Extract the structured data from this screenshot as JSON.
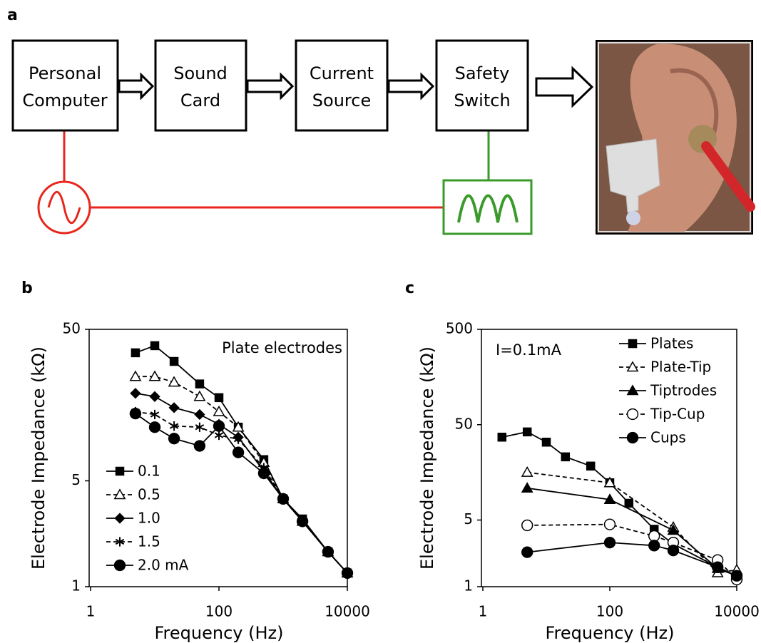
{
  "panel_labels": [
    "a",
    "b",
    "c"
  ],
  "diagram": {
    "boxes": [
      [
        "Personal",
        "Computer"
      ],
      [
        "Sound",
        "Card"
      ],
      [
        "Current",
        "Source"
      ],
      [
        "Safety",
        "Switch"
      ]
    ]
  },
  "chart_data": [
    {
      "type": "line",
      "log_x": true,
      "log_y": true,
      "xlabel": "Frequency (Hz)",
      "ylabel": "Electrode Impedance (kΩ)",
      "annotation": "Plate electrodes",
      "legend": "lower left",
      "xlim": [
        1,
        10000
      ],
      "xticks": [
        1,
        100,
        10000
      ],
      "ylim": [
        1,
        50
      ],
      "yticks": [
        1,
        5,
        50
      ],
      "series": [
        {
          "name": "0.1",
          "color": "#000000",
          "marker": "square",
          "filled": true,
          "dashed": false,
          "x": [
            5,
            10,
            20,
            50,
            100,
            200,
            500,
            1000,
            2000,
            5000,
            10000
          ],
          "values": [
            35,
            39,
            30.7,
            21.8,
            17.7,
            11.3,
            6.9,
            3.8,
            2.8,
            1.7,
            1.23
          ]
        },
        {
          "name": "0.5",
          "color": "#000000",
          "marker": "triangle",
          "filled": false,
          "dashed": true,
          "x": [
            5,
            10,
            20,
            50,
            100,
            200,
            500,
            1000,
            2000,
            5000,
            10000
          ],
          "values": [
            24.4,
            24.4,
            22.4,
            18,
            14.3,
            11.3,
            6.6,
            3.8,
            2.7,
            1.7,
            1.23
          ]
        },
        {
          "name": "1.0",
          "color": "#000000",
          "marker": "diamond",
          "filled": true,
          "dashed": false,
          "x": [
            5,
            10,
            20,
            50,
            100,
            200,
            500,
            1000,
            2000,
            5000,
            10000
          ],
          "values": [
            18.9,
            18,
            15.2,
            13.7,
            11.8,
            9.7,
            5.8,
            3.8,
            2.7,
            1.7,
            1.23
          ]
        },
        {
          "name": "1.5",
          "color": "#000000",
          "marker": "star",
          "filled": true,
          "dashed": true,
          "x": [
            5,
            10,
            20,
            50,
            100,
            200,
            500,
            1000,
            2000,
            5000,
            10000
          ],
          "values": [
            14.3,
            13.7,
            11.5,
            11.3,
            10,
            9.4,
            6.1,
            3.8,
            2.7,
            1.7,
            1.23
          ]
        },
        {
          "name": "2.0 mA",
          "color": "#000000",
          "marker": "circle",
          "filled": true,
          "dashed": false,
          "x": [
            5,
            10,
            20,
            50,
            100,
            200,
            500,
            1000,
            2000,
            5000,
            10000
          ],
          "values": [
            13.9,
            11.3,
            9.5,
            8.5,
            11.5,
            7.7,
            5.6,
            3.8,
            2.7,
            1.7,
            1.23
          ]
        }
      ]
    },
    {
      "type": "line",
      "log_x": true,
      "log_y": true,
      "xlabel": "Frequency (Hz)",
      "ylabel": "Electrode Impedance (kΩ)",
      "annotation": "I=0.1mA",
      "legend": "upper right",
      "xlim": [
        1,
        10000
      ],
      "xticks": [
        1,
        100,
        10000
      ],
      "ylim": [
        1,
        500
      ],
      "yticks": [
        1,
        5,
        50,
        500
      ],
      "series": [
        {
          "name": "Plates",
          "color": "#000000",
          "marker": "square",
          "filled": true,
          "dashed": false,
          "x": [
            2,
            5,
            10,
            20,
            50,
            100,
            200,
            500,
            1000,
            5000,
            10000
          ],
          "values": [
            37,
            42,
            32.8,
            23,
            18.4,
            12.3,
            7.5,
            4,
            2.8,
            1.6,
            1.3
          ]
        },
        {
          "name": "Plate-Tip",
          "color": "#000000",
          "marker": "triangle",
          "filled": false,
          "dashed": true,
          "x": [
            5,
            100,
            1000,
            5000,
            10000
          ],
          "values": [
            15.8,
            12.3,
            4.2,
            1.4,
            1.5
          ]
        },
        {
          "name": "Tiptrodes",
          "color": "#000000",
          "marker": "triangle",
          "filled": true,
          "dashed": false,
          "x": [
            5,
            100,
            1000,
            5000,
            10000
          ],
          "values": [
            10.8,
            8.2,
            3.9,
            1.55,
            1.3
          ]
        },
        {
          "name": "Tip-Cup",
          "color": "#000000",
          "marker": "circle",
          "filled": false,
          "dashed": true,
          "x": [
            5,
            100,
            500,
            1000,
            5000,
            10000
          ],
          "values": [
            4.4,
            4.5,
            3.4,
            2.9,
            1.9,
            1.19
          ]
        },
        {
          "name": "Cups",
          "color": "#000000",
          "marker": "circle",
          "filled": true,
          "dashed": false,
          "x": [
            5,
            100,
            500,
            1000,
            5000,
            10000
          ],
          "values": [
            2.3,
            2.9,
            2.7,
            2.4,
            1.6,
            1.3
          ]
        }
      ]
    }
  ]
}
